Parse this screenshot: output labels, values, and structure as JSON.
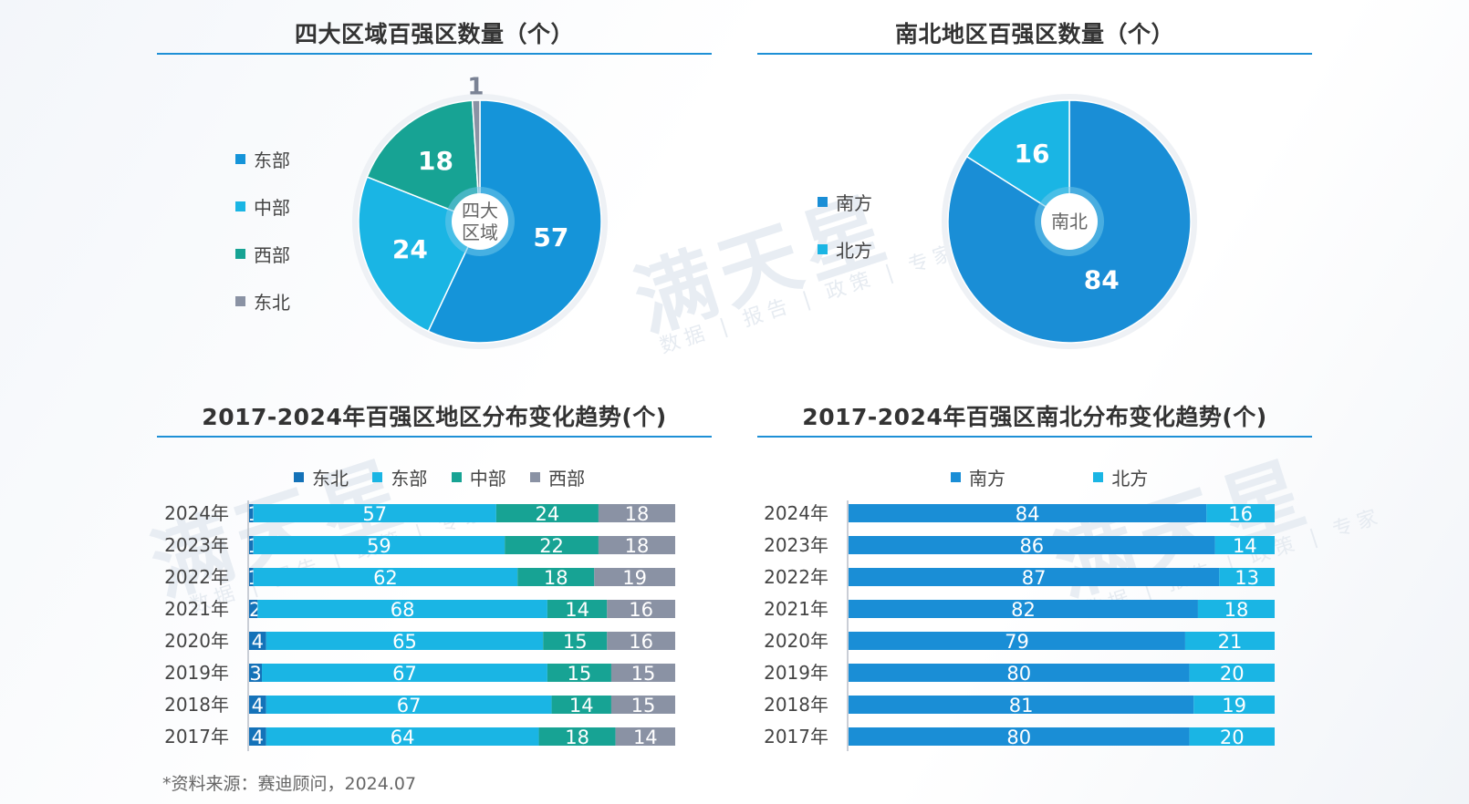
{
  "colors": {
    "east": "#1594d9",
    "central": "#1ab5e4",
    "west": "#17a394",
    "northeast": "#8a92a4",
    "south": "#1a8ed6",
    "north": "#1ab5e4",
    "northeast_bar": "#1472b8",
    "rule": "#1e90d6"
  },
  "watermark": {
    "brand": "满天星",
    "tagline": "数据 | 报告 | 政策 | 专家"
  },
  "panels": {
    "pie_regions_title": "四大区域百强区数量（个）",
    "pie_ns_title": "南北地区百强区数量（个）",
    "bar_regions_title": "2017-2024年百强区地区分布变化趋势(个)",
    "bar_ns_title": "2017-2024年百强区南北分布变化趋势(个)"
  },
  "pie_regions_legend": [
    "东部",
    "中部",
    "西部",
    "东北"
  ],
  "pie_ns_legend": [
    "南方",
    "北方"
  ],
  "bar_regions_legend": [
    "东北",
    "东部",
    "中部",
    "西部"
  ],
  "bar_ns_legend": [
    "南方",
    "北方"
  ],
  "source": "*资料来源：赛迪顾问，2024.07",
  "chart_data": [
    {
      "type": "pie",
      "title": "四大区域百强区数量（个）",
      "center_label": [
        "四大",
        "区域"
      ],
      "slices": [
        {
          "label": "东部",
          "value": 57
        },
        {
          "label": "中部",
          "value": 24
        },
        {
          "label": "西部",
          "value": 18
        },
        {
          "label": "东北",
          "value": 1
        }
      ]
    },
    {
      "type": "pie",
      "title": "南北地区百强区数量（个）",
      "center_label": [
        "南北"
      ],
      "slices": [
        {
          "label": "南方",
          "value": 84
        },
        {
          "label": "北方",
          "value": 16
        }
      ]
    },
    {
      "type": "bar",
      "stacked": true,
      "orientation": "horizontal",
      "title": "2017-2024年百强区地区分布变化趋势(个)",
      "categories": [
        "2024年",
        "2023年",
        "2022年",
        "2021年",
        "2020年",
        "2019年",
        "2018年",
        "2017年"
      ],
      "series": [
        {
          "name": "东北",
          "values": [
            1,
            1,
            1,
            2,
            4,
            3,
            4,
            4
          ]
        },
        {
          "name": "东部",
          "values": [
            57,
            59,
            62,
            68,
            65,
            67,
            67,
            64
          ]
        },
        {
          "name": "中部",
          "values": [
            24,
            22,
            18,
            14,
            15,
            15,
            14,
            18
          ]
        },
        {
          "name": "西部",
          "values": [
            18,
            18,
            19,
            16,
            16,
            15,
            15,
            14
          ]
        }
      ],
      "xlim": [
        0,
        100
      ]
    },
    {
      "type": "bar",
      "stacked": true,
      "orientation": "horizontal",
      "title": "2017-2024年百强区南北分布变化趋势(个)",
      "categories": [
        "2024年",
        "2023年",
        "2022年",
        "2021年",
        "2020年",
        "2019年",
        "2018年",
        "2017年"
      ],
      "series": [
        {
          "name": "南方",
          "values": [
            84,
            86,
            87,
            82,
            79,
            80,
            81,
            80
          ]
        },
        {
          "name": "北方",
          "values": [
            16,
            14,
            13,
            18,
            21,
            20,
            19,
            20
          ]
        }
      ],
      "xlim": [
        0,
        100
      ]
    }
  ]
}
